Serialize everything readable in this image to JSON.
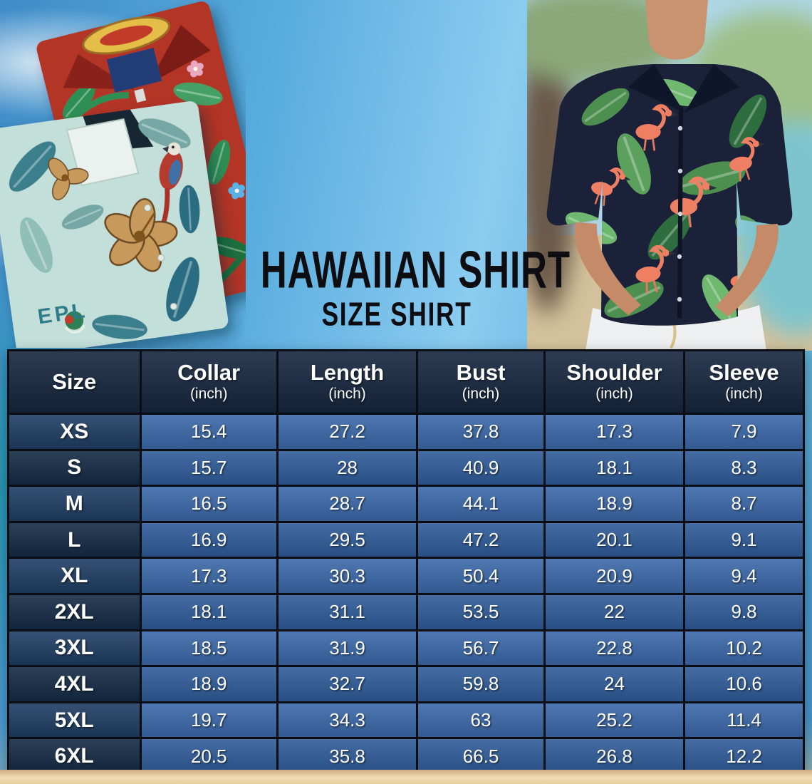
{
  "title": {
    "main": "HAWAIIAN SHIRT",
    "subtitle": "SIZE SHIRT"
  },
  "photos": {
    "left_print_text": "EPL"
  },
  "table": {
    "columns": [
      {
        "label": "Size",
        "sub": ""
      },
      {
        "label": "Collar",
        "sub": "(inch)"
      },
      {
        "label": "Length",
        "sub": "(inch)"
      },
      {
        "label": "Bust",
        "sub": "(inch)"
      },
      {
        "label": "Shoulder",
        "sub": "(inch)"
      },
      {
        "label": "Sleeve",
        "sub": "(inch)"
      }
    ],
    "rows": [
      {
        "size": "XS",
        "values": [
          "15.4",
          "27.2",
          "37.8",
          "17.3",
          "7.9"
        ]
      },
      {
        "size": "S",
        "values": [
          "15.7",
          "28",
          "40.9",
          "18.1",
          "8.3"
        ]
      },
      {
        "size": "M",
        "values": [
          "16.5",
          "28.7",
          "44.1",
          "18.9",
          "8.7"
        ]
      },
      {
        "size": "L",
        "values": [
          "16.9",
          "29.5",
          "47.2",
          "20.1",
          "9.1"
        ]
      },
      {
        "size": "XL",
        "values": [
          "17.3",
          "30.3",
          "50.4",
          "20.9",
          "9.4"
        ]
      },
      {
        "size": "2XL",
        "values": [
          "18.1",
          "31.1",
          "53.5",
          "22",
          "9.8"
        ]
      },
      {
        "size": "3XL",
        "values": [
          "18.5",
          "31.9",
          "56.7",
          "22.8",
          "10.2"
        ]
      },
      {
        "size": "4XL",
        "values": [
          "18.9",
          "32.7",
          "59.8",
          "24",
          "10.6"
        ]
      },
      {
        "size": "5XL",
        "values": [
          "19.7",
          "34.3",
          "63",
          "25.2",
          "11.4"
        ]
      },
      {
        "size": "6XL",
        "values": [
          "20.5",
          "35.8",
          "66.5",
          "26.8",
          "12.2"
        ]
      }
    ]
  },
  "chart_data": {
    "type": "table",
    "title": "Hawaiian Shirt Size Shirt",
    "columns": [
      "Size",
      "Collar (inch)",
      "Length (inch)",
      "Bust (inch)",
      "Shoulder (inch)",
      "Sleeve (inch)"
    ],
    "rows": [
      [
        "XS",
        15.4,
        27.2,
        37.8,
        17.3,
        7.9
      ],
      [
        "S",
        15.7,
        28,
        40.9,
        18.1,
        8.3
      ],
      [
        "M",
        16.5,
        28.7,
        44.1,
        18.9,
        8.7
      ],
      [
        "L",
        16.9,
        29.5,
        47.2,
        20.1,
        9.1
      ],
      [
        "XL",
        17.3,
        30.3,
        50.4,
        20.9,
        9.4
      ],
      [
        "2XL",
        18.1,
        31.1,
        53.5,
        22,
        9.8
      ],
      [
        "3XL",
        18.5,
        31.9,
        56.7,
        22.8,
        10.2
      ],
      [
        "4XL",
        18.9,
        32.7,
        59.8,
        24,
        10.6
      ],
      [
        "5XL",
        19.7,
        34.3,
        63,
        25.2,
        11.4
      ],
      [
        "6XL",
        20.5,
        35.8,
        66.5,
        26.8,
        12.2
      ]
    ]
  },
  "colors": {
    "header-navy": "#16263f",
    "size-odd": "#1f3d63",
    "size-even": "#142a45",
    "row-odd": "#3b68a8",
    "row-even": "#2f5c99",
    "table-border": "#0b0d14",
    "title-black": "#0d0d12",
    "sky-blue": "#58acde",
    "sand": "#ecd3a6",
    "shirt-red": "#b23427",
    "shirt-teal": "#c3dfda",
    "shirt-navy": "#1a2138",
    "flamingo-pink": "#ee7f63",
    "leaf-green": "#4c8f4f"
  }
}
